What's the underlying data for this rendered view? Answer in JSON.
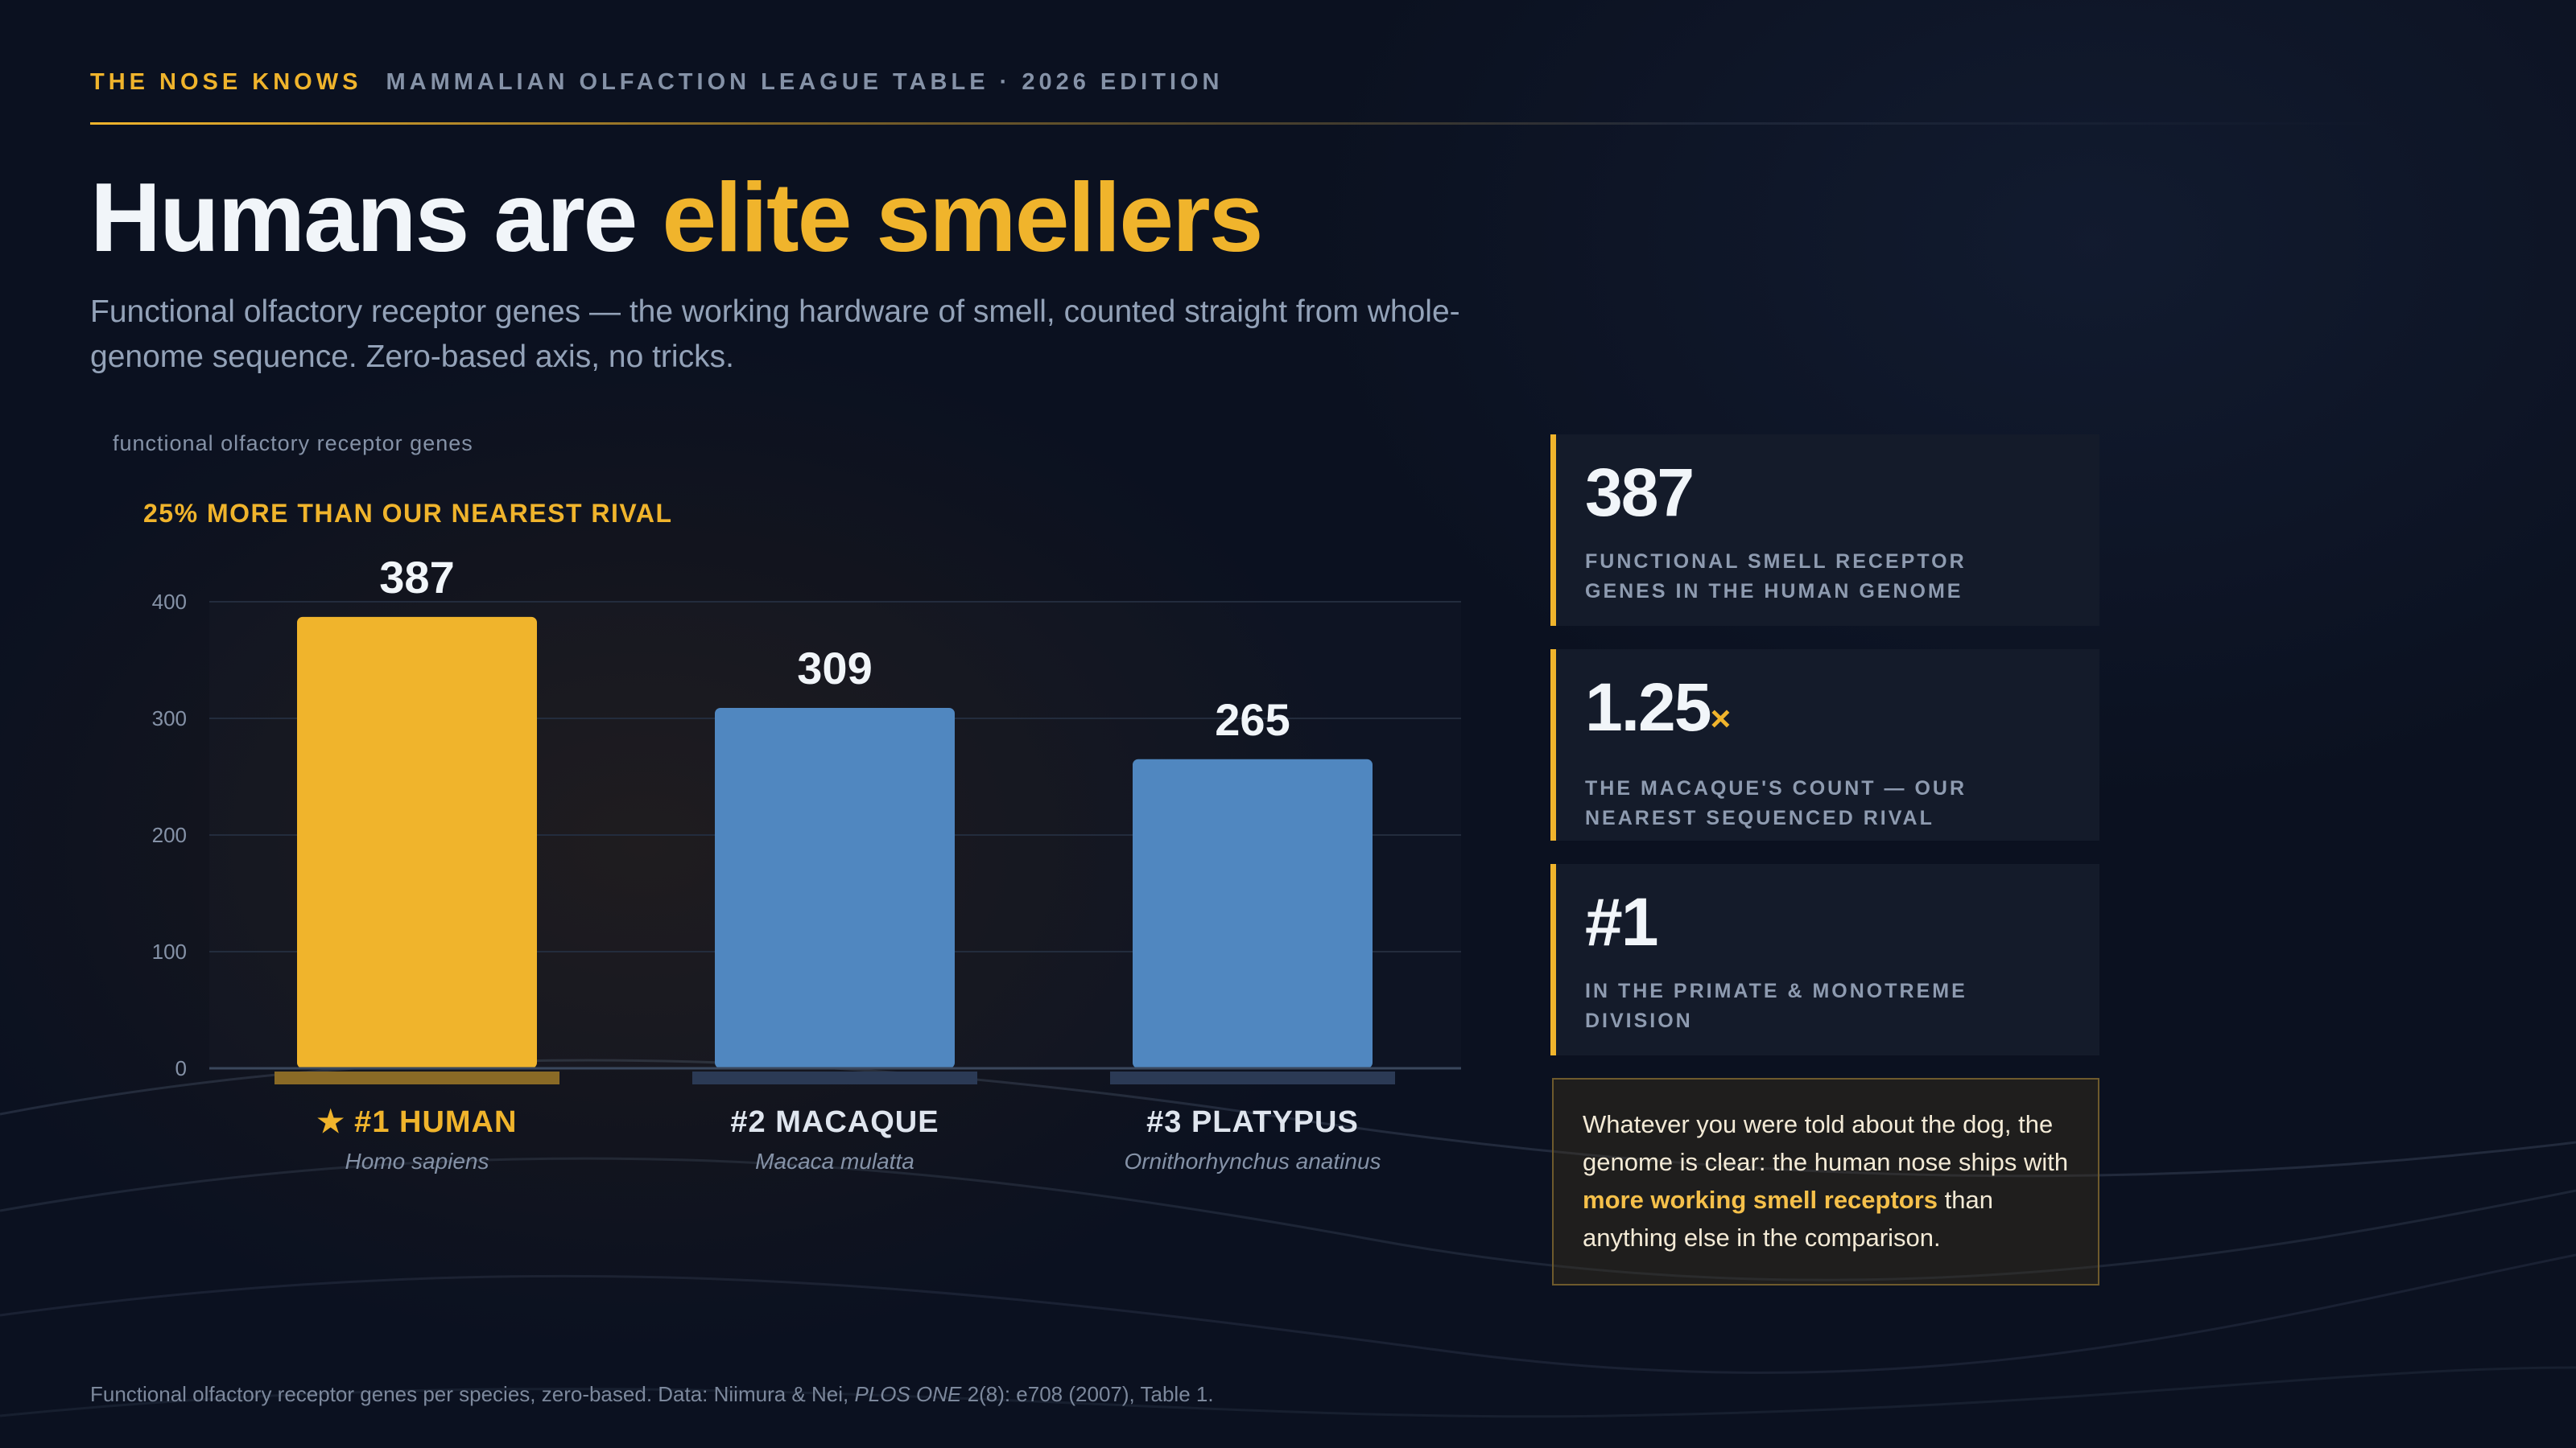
{
  "header": {
    "brand": "THE NOSE KNOWS",
    "subtitle": "MAMMALIAN OLFACTION LEAGUE TABLE · 2026 EDITION"
  },
  "headline": {
    "plain": "Humans are ",
    "accent": "elite smellers"
  },
  "subtitle": "Functional olfactory receptor genes — the working hardware of smell, counted straight from whole-genome sequence. Zero-based axis, no tricks.",
  "chart_data": {
    "type": "bar",
    "ylabel": "functional olfactory receptor genes",
    "annotation": "25% MORE THAN OUR NEAREST RIVAL",
    "ylim": [
      0,
      400
    ],
    "yticks": [
      0,
      100,
      200,
      300,
      400
    ],
    "grid": true,
    "categories": [
      "#1 HUMAN",
      "#2 MACAQUE",
      "#3 PLATYPUS"
    ],
    "species": [
      "Homo sapiens",
      "Macaca mulatta",
      "Ornithorhynchus anatinus"
    ],
    "values": [
      387,
      309,
      265
    ],
    "value_labels": [
      "387",
      "309",
      "265"
    ],
    "winner_marker": "★",
    "colors": {
      "highlight": "#f0b42c",
      "others": "#5087c0",
      "axis": "#3a475c",
      "grid": "#232c3d"
    }
  },
  "stats": [
    {
      "value": "387",
      "suffix": "",
      "label": "FUNCTIONAL SMELL RECEPTOR GENES IN THE HUMAN GENOME"
    },
    {
      "value": "1.25",
      "suffix": "×",
      "label": "THE MACAQUE'S COUNT — OUR NEAREST SEQUENCED RIVAL"
    },
    {
      "value": "#1",
      "suffix": "",
      "label": "IN THE PRIMATE & MONOTREME DIVISION"
    }
  ],
  "note": {
    "before": "Whatever you were told about the dog, the genome is clear: the human nose ships with ",
    "highlight": "more working smell receptors",
    "after": " than anything else in the comparison."
  },
  "footer": {
    "before": "Functional olfactory receptor genes per species, zero-based. Data: Niimura & Nei, ",
    "journal": "PLOS ONE",
    "after": " 2(8): e708 (2007), Table 1."
  },
  "colors": {
    "accent": "#f0b42c",
    "background": "#0b1120",
    "panel": "#141b2a",
    "muted": "#8592a7"
  }
}
